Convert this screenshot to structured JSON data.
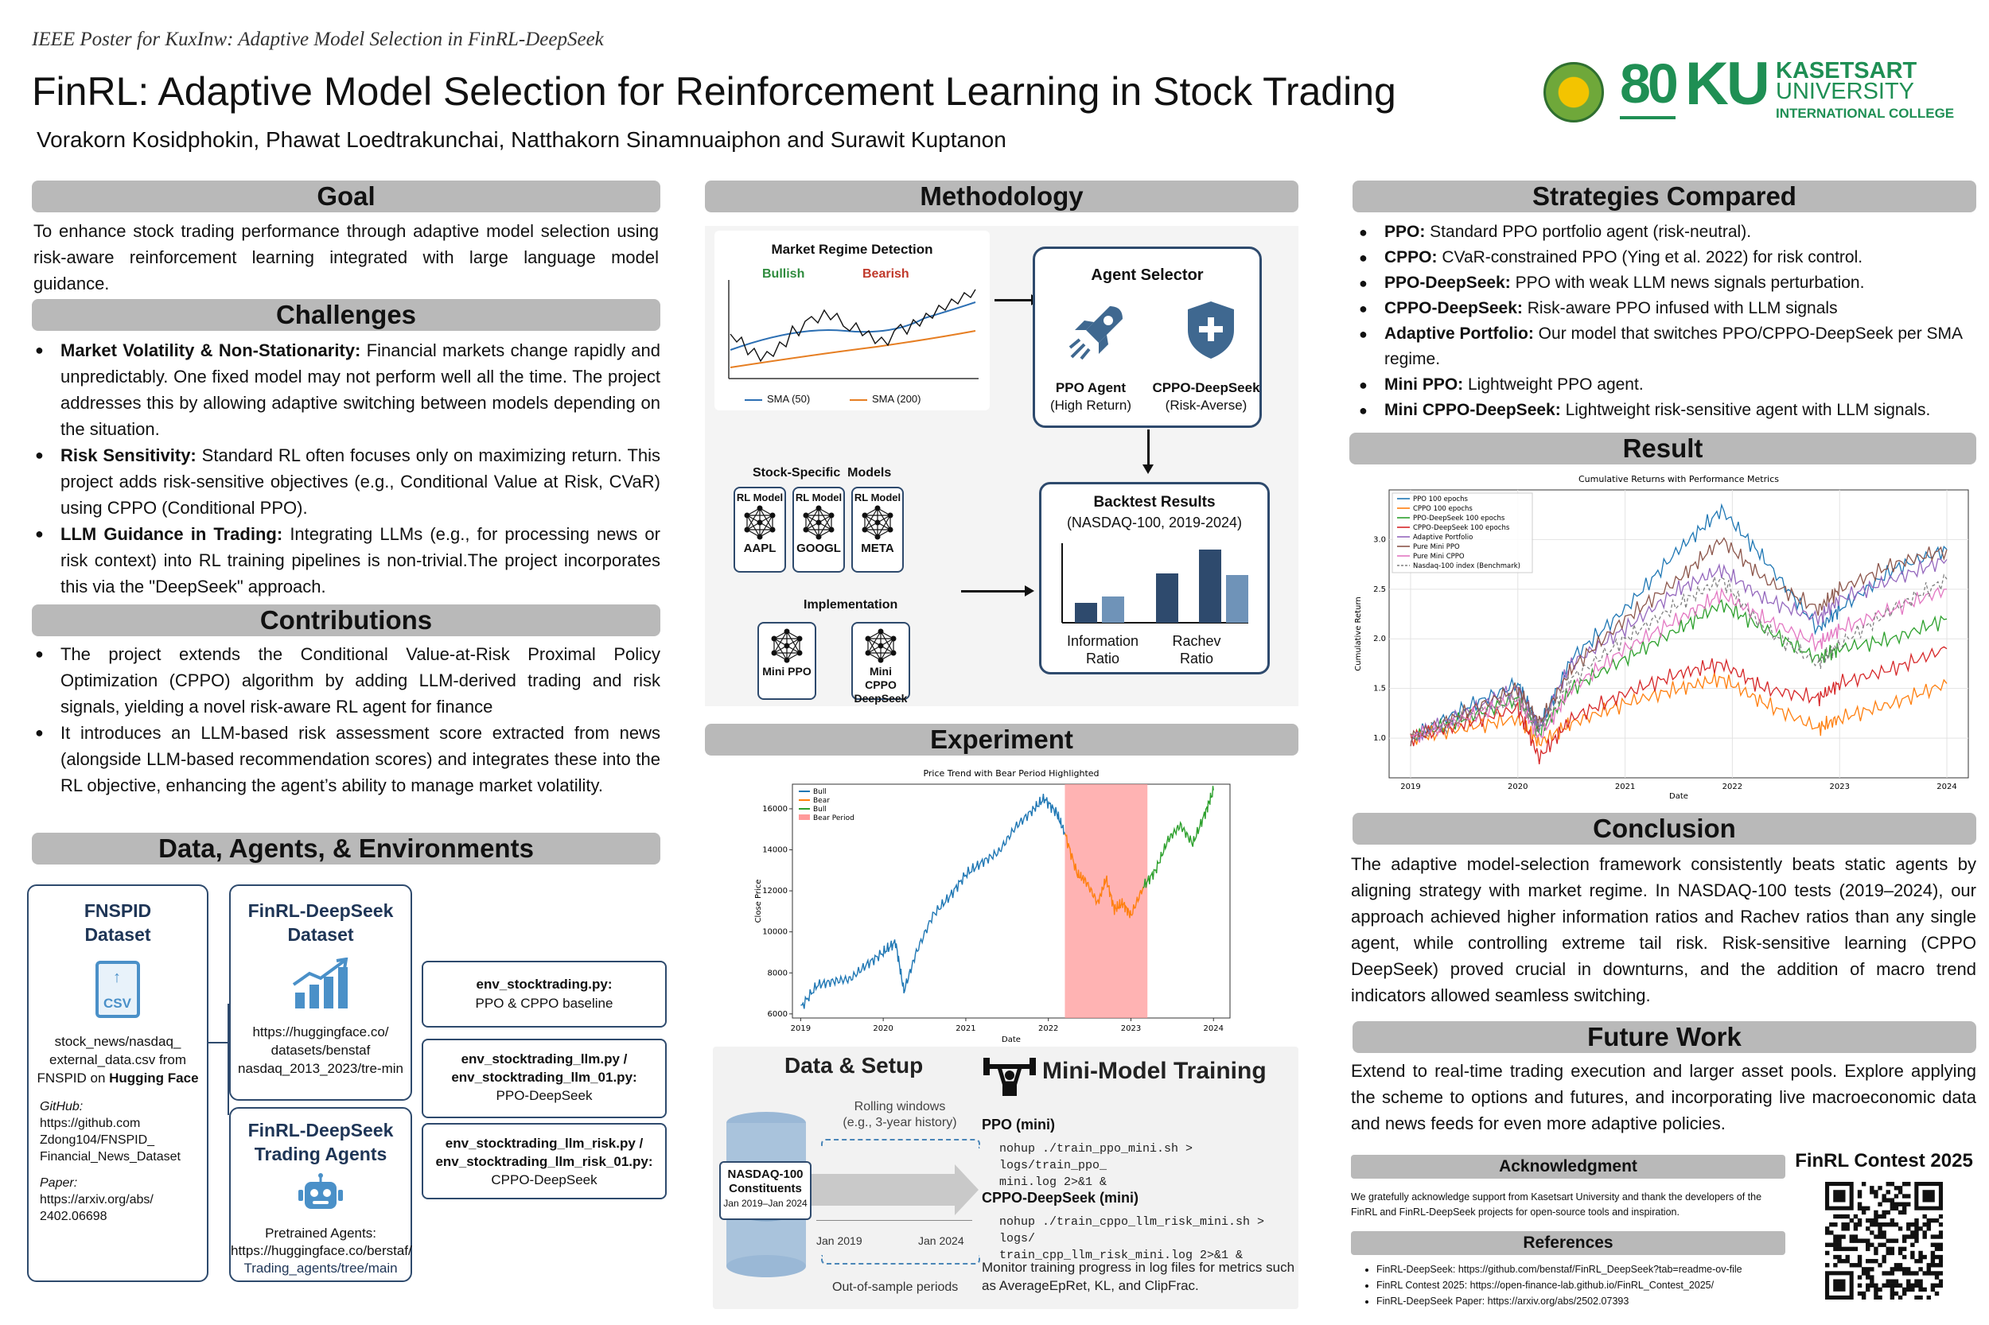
{
  "header": {
    "subtitle": "IEEE Poster for KuxInw: Adaptive Model Selection in FinRL-DeepSeek",
    "title": "FinRL: Adaptive Model Selection for Reinforcement Learning in Stock Trading",
    "authors": "Vorakorn Kosidphokin, Phawat Loedtrakunchai, Natthakorn Sinamnuaiphon and Surawit Kuptanon",
    "logo_ku": "KU",
    "logo_80": "80",
    "uni_line1": "KASETSART",
    "uni_line2": "UNIVERSITY",
    "uni_line3": "INTERNATIONAL COLLEGE"
  },
  "goal": {
    "heading": "Goal",
    "text": "To enhance stock trading performance through adaptive model selection using risk-aware reinforcement learning integrated with large language model guidance."
  },
  "challenges": {
    "heading": "Challenges",
    "items": [
      {
        "bold": "Market Volatility & Non-Stationarity:",
        "text": " Financial markets change rapidly and unpredictably. One fixed model may not perform well all the time. The project addresses this by allowing adaptive switching between models depending on the situation."
      },
      {
        "bold": "Risk Sensitivity:",
        "text": " Standard RL often focuses only on maximizing return. This project adds risk-sensitive objectives (e.g., Conditional Value at Risk, CVaR) using CPPO (Conditional PPO)."
      },
      {
        "bold": "LLM Guidance in Trading:",
        "text": " Integrating LLMs (e.g., for processing news or risk context) into RL training pipelines is non-trivial.The project incorporates this via the \"DeepSeek\" approach."
      }
    ]
  },
  "contributions": {
    "heading": "Contributions",
    "items": [
      "The project extends the Conditional Value-at-Risk Proximal Policy Optimization (CPPO) algorithm by adding LLM-derived trading and risk signals, yielding a novel risk-aware RL agent for finance",
      "It introduces an LLM-based risk assessment score extracted from news (alongside LLM-based recommendation scores) and integrates these into the RL objective, enhancing the agent’s ability to manage market volatility."
    ]
  },
  "data": {
    "heading": "Data, Agents, & Environments",
    "fnspid_title1": "FNSPID",
    "fnspid_title2": "Dataset",
    "csv": "CSV",
    "fnspid_desc1": "stock_news/nasdaq_",
    "fnspid_desc2": "external_data.csv from",
    "fnspid_desc3": "FNSPID on ",
    "fnspid_desc_bold": "Hugging Face",
    "github_label": "GitHub:",
    "github_1": "https://github.com",
    "github_2": "Zdong104/FNSPID_",
    "github_3": "Financial_News_Dataset",
    "paper_label": "Paper:",
    "paper_1": "https://arxiv.org/abs/",
    "paper_2": "2402.06698",
    "fdd_title1": "FinRL-DeepSeek",
    "fdd_title2": "Dataset",
    "fdd_1": "https://huggingface.co/",
    "fdd_2": "datasets/benstaf",
    "fdd_3": "nasdaq_2013_2023/tre-min",
    "fta_title1": "FinRL-DeepSeek",
    "fta_title2": "Trading Agents",
    "fta_1": "Pretrained Agents:",
    "fta_2": "https://huggingface.co/berstaf/",
    "fta_3": "Trading_agents/tree/main",
    "env1_title": "env_stocktrading.py:",
    "env1_desc": "PPO & CPPO baseline",
    "env2_title1": "env_stocktrading_llm.py /",
    "env2_title2": "env_stocktrading_llm_01.py:",
    "env2_desc": "PPO-DeepSeek",
    "env3_title1": "env_stocktrading_llm_risk.py /",
    "env3_title2": "env_stocktrading_llm_risk_01.py:",
    "env3_desc": "CPPO-DeepSeek"
  },
  "methodology": {
    "heading": "Methodology",
    "regime_title": "Market Regime Detection",
    "bullish": "Bullish",
    "bearish": "Bearish",
    "sma50": "SMA (50)",
    "sma200": "SMA (200)",
    "selector_title": "Agent Selector",
    "ppo_agent": "PPO Agent",
    "ppo_sub": "(High Return)",
    "cppo_agent": "CPPO-DeepSeek",
    "cppo_sub": "(Risk-Averse)",
    "models_title": "Stock-Specific  Models",
    "rl_model": "RL Model",
    "aapl": "AAPL",
    "googl": "GOOGL",
    "meta": "META",
    "impl_title": "Implementation",
    "mini_ppo": "Mini PPO",
    "mini_cppo1": "Mini CPPO",
    "mini_cppo2": "DeepSeek",
    "backtest_title": "Backtest Results",
    "backtest_sub": "(NASDAQ-100, 2019-2024)",
    "info1": "Information",
    "info2": "Ratio",
    "rachev1": "Rachev",
    "rachev2": "Ratio",
    "bars": [
      0.25,
      0.33,
      0.62,
      0.92,
      0.6
    ]
  },
  "experiment": {
    "heading": "Experiment",
    "chart_title": "Price Trend with Bear Period Highlighted"
  },
  "setup": {
    "title": "Data & Setup",
    "rolling1": "Rolling windows",
    "rolling2": "(e.g., 3-year history)",
    "nasdaq1": "NASDAQ-100",
    "nasdaq2": "Constituents",
    "nasdaq3": "Jan 2019–Jan 2024",
    "jan2019": "Jan 2019",
    "jan2024": "Jan 2024",
    "oos": "Out-of-sample periods"
  },
  "mini": {
    "title": "Mini-Model Training",
    "ppo_label": "PPO (mini)",
    "ppo_cmd1": "nohup ./train_ppo_mini.sh > logs/train_ppo_",
    "ppo_cmd2": "mini.log 2>&1 &",
    "cppo_label": "CPPO-DeepSeek (mini)",
    "cppo_cmd1": "nohup ./train_cppo_llm_risk_mini.sh > logs/",
    "cppo_cmd2": "train_cpp_llm_risk_mini.log 2>&1 &",
    "monitor1": "Monitor training progress in log files for metrics such",
    "monitor2": "as AverageEpRet, KL, and ClipFrac."
  },
  "strategies": {
    "heading": "Strategies Compared",
    "items": [
      {
        "bold": "PPO:",
        "text": " Standard PPO portfolio agent (risk-neutral)."
      },
      {
        "bold": "CPPO:",
        "text": " CVaR-constrained PPO (Ying et al. 2022) for risk control."
      },
      {
        "bold": "PPO-DeepSeek:",
        "text": " PPO with weak LLM news signals perturbation."
      },
      {
        "bold": "CPPO-DeepSeek:",
        "text": " Risk-aware PPO infused with LLM signals"
      },
      {
        "bold": "Adaptive Portfolio:",
        "text": " Our model that switches PPO/CPPO-DeepSeek per SMA regime."
      },
      {
        "bold": "Mini PPO:",
        "text": " Lightweight PPO agent."
      },
      {
        "bold": "Mini CPPO-DeepSeek:",
        "text": " Lightweight risk-sensitive agent with LLM signals."
      }
    ]
  },
  "result": {
    "heading": "Result"
  },
  "conclusion": {
    "heading": "Conclusion",
    "text": "The adaptive model-selection framework consistently beats static agents by aligning strategy with market regime. In NASDAQ-100 tests (2019–2024), our approach achieved higher information ratios and Rachev ratios than any single agent, while controlling extreme tail risk. Risk-sensitive learning (CPPO DeepSeek) proved crucial in downturns, and the addition of macro trend indicators allowed seamless switching."
  },
  "future": {
    "heading": "Future Work",
    "text": "Extend to real-time trading execution and larger asset pools. Explore applying the scheme to options and futures, and incorporating live macroeconomic data and news feeds for even more adaptive policies."
  },
  "ack": {
    "heading": "Acknowledgment",
    "text": "We gratefully acknowledge support from Kasetsart University and thank the developers of the FinRL and FinRL-DeepSeek projects for open-source tools and inspiration."
  },
  "refs": {
    "heading": "References",
    "items": [
      "FinRL-DeepSeek: https://github.com/benstaf/FinRL_DeepSeek?tab=readme-ov-file",
      "FinRL Contest 2025: https://open-finance-lab.github.io/FinRL_Contest_2025/",
      "FinRL-DeepSeek Paper: https://arxiv.org/abs/2502.07393"
    ]
  },
  "contest": "FinRL Contest 2025",
  "colors": {
    "header_bar": "#b9b9b9",
    "navy": "#1e3556",
    "ku_green": "#1f8f54"
  },
  "chart_data": [
    {
      "type": "line",
      "title": "Price Trend with Bear Period Highlighted",
      "xlabel": "Date",
      "ylabel": "Close Price",
      "x_ticks": [
        "2019",
        "2020",
        "2021",
        "2022",
        "2023",
        "2024"
      ],
      "y_ticks": [
        "6000",
        "8000",
        "10000",
        "12000",
        "14000",
        "16000"
      ],
      "ylim": [
        5800,
        17200
      ],
      "legend": [
        "Bull",
        "Bear",
        "Bull",
        "Bear Period"
      ],
      "series": [
        {
          "name": "Bull",
          "color": "#1f77b4",
          "x": [
            2019.0,
            2019.2,
            2019.4,
            2019.6,
            2019.8,
            2020.0,
            2020.15,
            2020.25,
            2020.4,
            2020.6,
            2020.8,
            2021.0,
            2021.2,
            2021.4,
            2021.6,
            2021.8,
            2021.95,
            2022.1,
            2022.2
          ],
          "y": [
            6300,
            7400,
            7600,
            7700,
            8400,
            9000,
            9500,
            7100,
            9000,
            10800,
            11700,
            12800,
            13400,
            13900,
            15100,
            15900,
            16500,
            15800,
            14800
          ]
        },
        {
          "name": "Bear",
          "color": "#ff7f0e",
          "x": [
            2022.2,
            2022.35,
            2022.45,
            2022.6,
            2022.7,
            2022.8,
            2022.9,
            2023.0,
            2023.15
          ],
          "y": [
            14800,
            12800,
            12500,
            11400,
            12600,
            11100,
            11400,
            10800,
            12200
          ]
        },
        {
          "name": "Bull",
          "color": "#2ca02c",
          "x": [
            2023.15,
            2023.3,
            2023.45,
            2023.6,
            2023.75,
            2023.9,
            2024.0
          ],
          "y": [
            12200,
            13000,
            14500,
            15200,
            14300,
            15800,
            16900
          ]
        }
      ],
      "bear_period": [
        2022.2,
        2023.2
      ]
    },
    {
      "type": "line",
      "title": "Cumulative Returns with Performance Metrics",
      "xlabel": "Date",
      "ylabel": "Cumulative Return",
      "x_ticks": [
        "2019",
        "2020",
        "2021",
        "2022",
        "2023",
        "2024"
      ],
      "y_ticks": [
        "1.0",
        "1.5",
        "2.0",
        "2.5",
        "3.0"
      ],
      "ylim": [
        0.6,
        3.5
      ],
      "series": [
        {
          "name": "PPO 100 epochs",
          "color": "#1f77b4",
          "x": [
            2019,
            2019.5,
            2020,
            2020.2,
            2020.5,
            2021,
            2021.5,
            2021.9,
            2022.3,
            2022.8,
            2023,
            2023.5,
            2024
          ],
          "y": [
            1.0,
            1.3,
            1.55,
            1.1,
            1.8,
            2.3,
            2.9,
            3.3,
            2.8,
            2.1,
            2.3,
            2.7,
            2.9
          ]
        },
        {
          "name": "CPPO 100 epochs",
          "color": "#ff7f0e",
          "x": [
            2019,
            2019.5,
            2020,
            2020.2,
            2020.5,
            2021,
            2021.5,
            2021.9,
            2022.3,
            2022.8,
            2023,
            2023.5,
            2024
          ],
          "y": [
            1.0,
            1.1,
            1.2,
            0.95,
            1.15,
            1.35,
            1.5,
            1.6,
            1.35,
            1.1,
            1.2,
            1.35,
            1.55
          ]
        },
        {
          "name": "PPO-DeepSeek 100 epochs",
          "color": "#2ca02c",
          "x": [
            2019,
            2019.5,
            2020,
            2020.2,
            2020.5,
            2021,
            2021.5,
            2021.9,
            2022.3,
            2022.8,
            2023,
            2023.5,
            2024
          ],
          "y": [
            1.0,
            1.2,
            1.4,
            1.05,
            1.5,
            1.8,
            2.1,
            2.35,
            2.1,
            1.8,
            1.9,
            2.0,
            2.2
          ]
        },
        {
          "name": "CPPO-DeepSeek 100 epochs",
          "color": "#d62728",
          "x": [
            2019,
            2019.5,
            2020,
            2020.2,
            2020.5,
            2021,
            2021.5,
            2021.9,
            2022.3,
            2022.8,
            2023,
            2023.5,
            2024
          ],
          "y": [
            1.0,
            1.15,
            1.3,
            0.8,
            1.2,
            1.45,
            1.65,
            1.75,
            1.5,
            1.4,
            1.55,
            1.7,
            1.9
          ]
        },
        {
          "name": "Adaptive Portfolio",
          "color": "#9467bd",
          "x": [
            2019,
            2019.5,
            2020,
            2020.2,
            2020.5,
            2021,
            2021.5,
            2021.9,
            2022.3,
            2022.8,
            2023,
            2023.5,
            2024
          ],
          "y": [
            1.0,
            1.25,
            1.5,
            1.1,
            1.75,
            2.1,
            2.5,
            2.7,
            2.4,
            2.2,
            2.4,
            2.6,
            2.8
          ]
        },
        {
          "name": "Pure Mini PPO",
          "color": "#8c564b",
          "x": [
            2019,
            2019.5,
            2020,
            2020.2,
            2020.5,
            2021,
            2021.5,
            2021.9,
            2022.3,
            2022.8,
            2023,
            2023.5,
            2024
          ],
          "y": [
            1.0,
            1.25,
            1.5,
            1.15,
            1.7,
            2.2,
            2.6,
            3.0,
            2.6,
            2.3,
            2.5,
            2.75,
            2.9
          ]
        },
        {
          "name": "Pure Mini CPPO",
          "color": "#e377c2",
          "x": [
            2019,
            2019.5,
            2020,
            2020.2,
            2020.5,
            2021,
            2021.5,
            2021.9,
            2022.3,
            2022.8,
            2023,
            2023.5,
            2024
          ],
          "y": [
            1.0,
            1.2,
            1.4,
            1.0,
            1.5,
            1.9,
            2.2,
            2.45,
            2.2,
            1.95,
            2.1,
            2.3,
            2.5
          ]
        },
        {
          "name": "Nasdaq-100 index (Benchmark)",
          "color": "#7f7f7f",
          "x": [
            2019,
            2019.5,
            2020,
            2020.2,
            2020.5,
            2021,
            2021.5,
            2021.9,
            2022.3,
            2022.8,
            2023,
            2023.5,
            2024
          ],
          "y": [
            1.0,
            1.2,
            1.4,
            1.1,
            1.6,
            2.0,
            2.35,
            2.6,
            2.1,
            1.75,
            1.95,
            2.3,
            2.6
          ]
        }
      ]
    }
  ]
}
